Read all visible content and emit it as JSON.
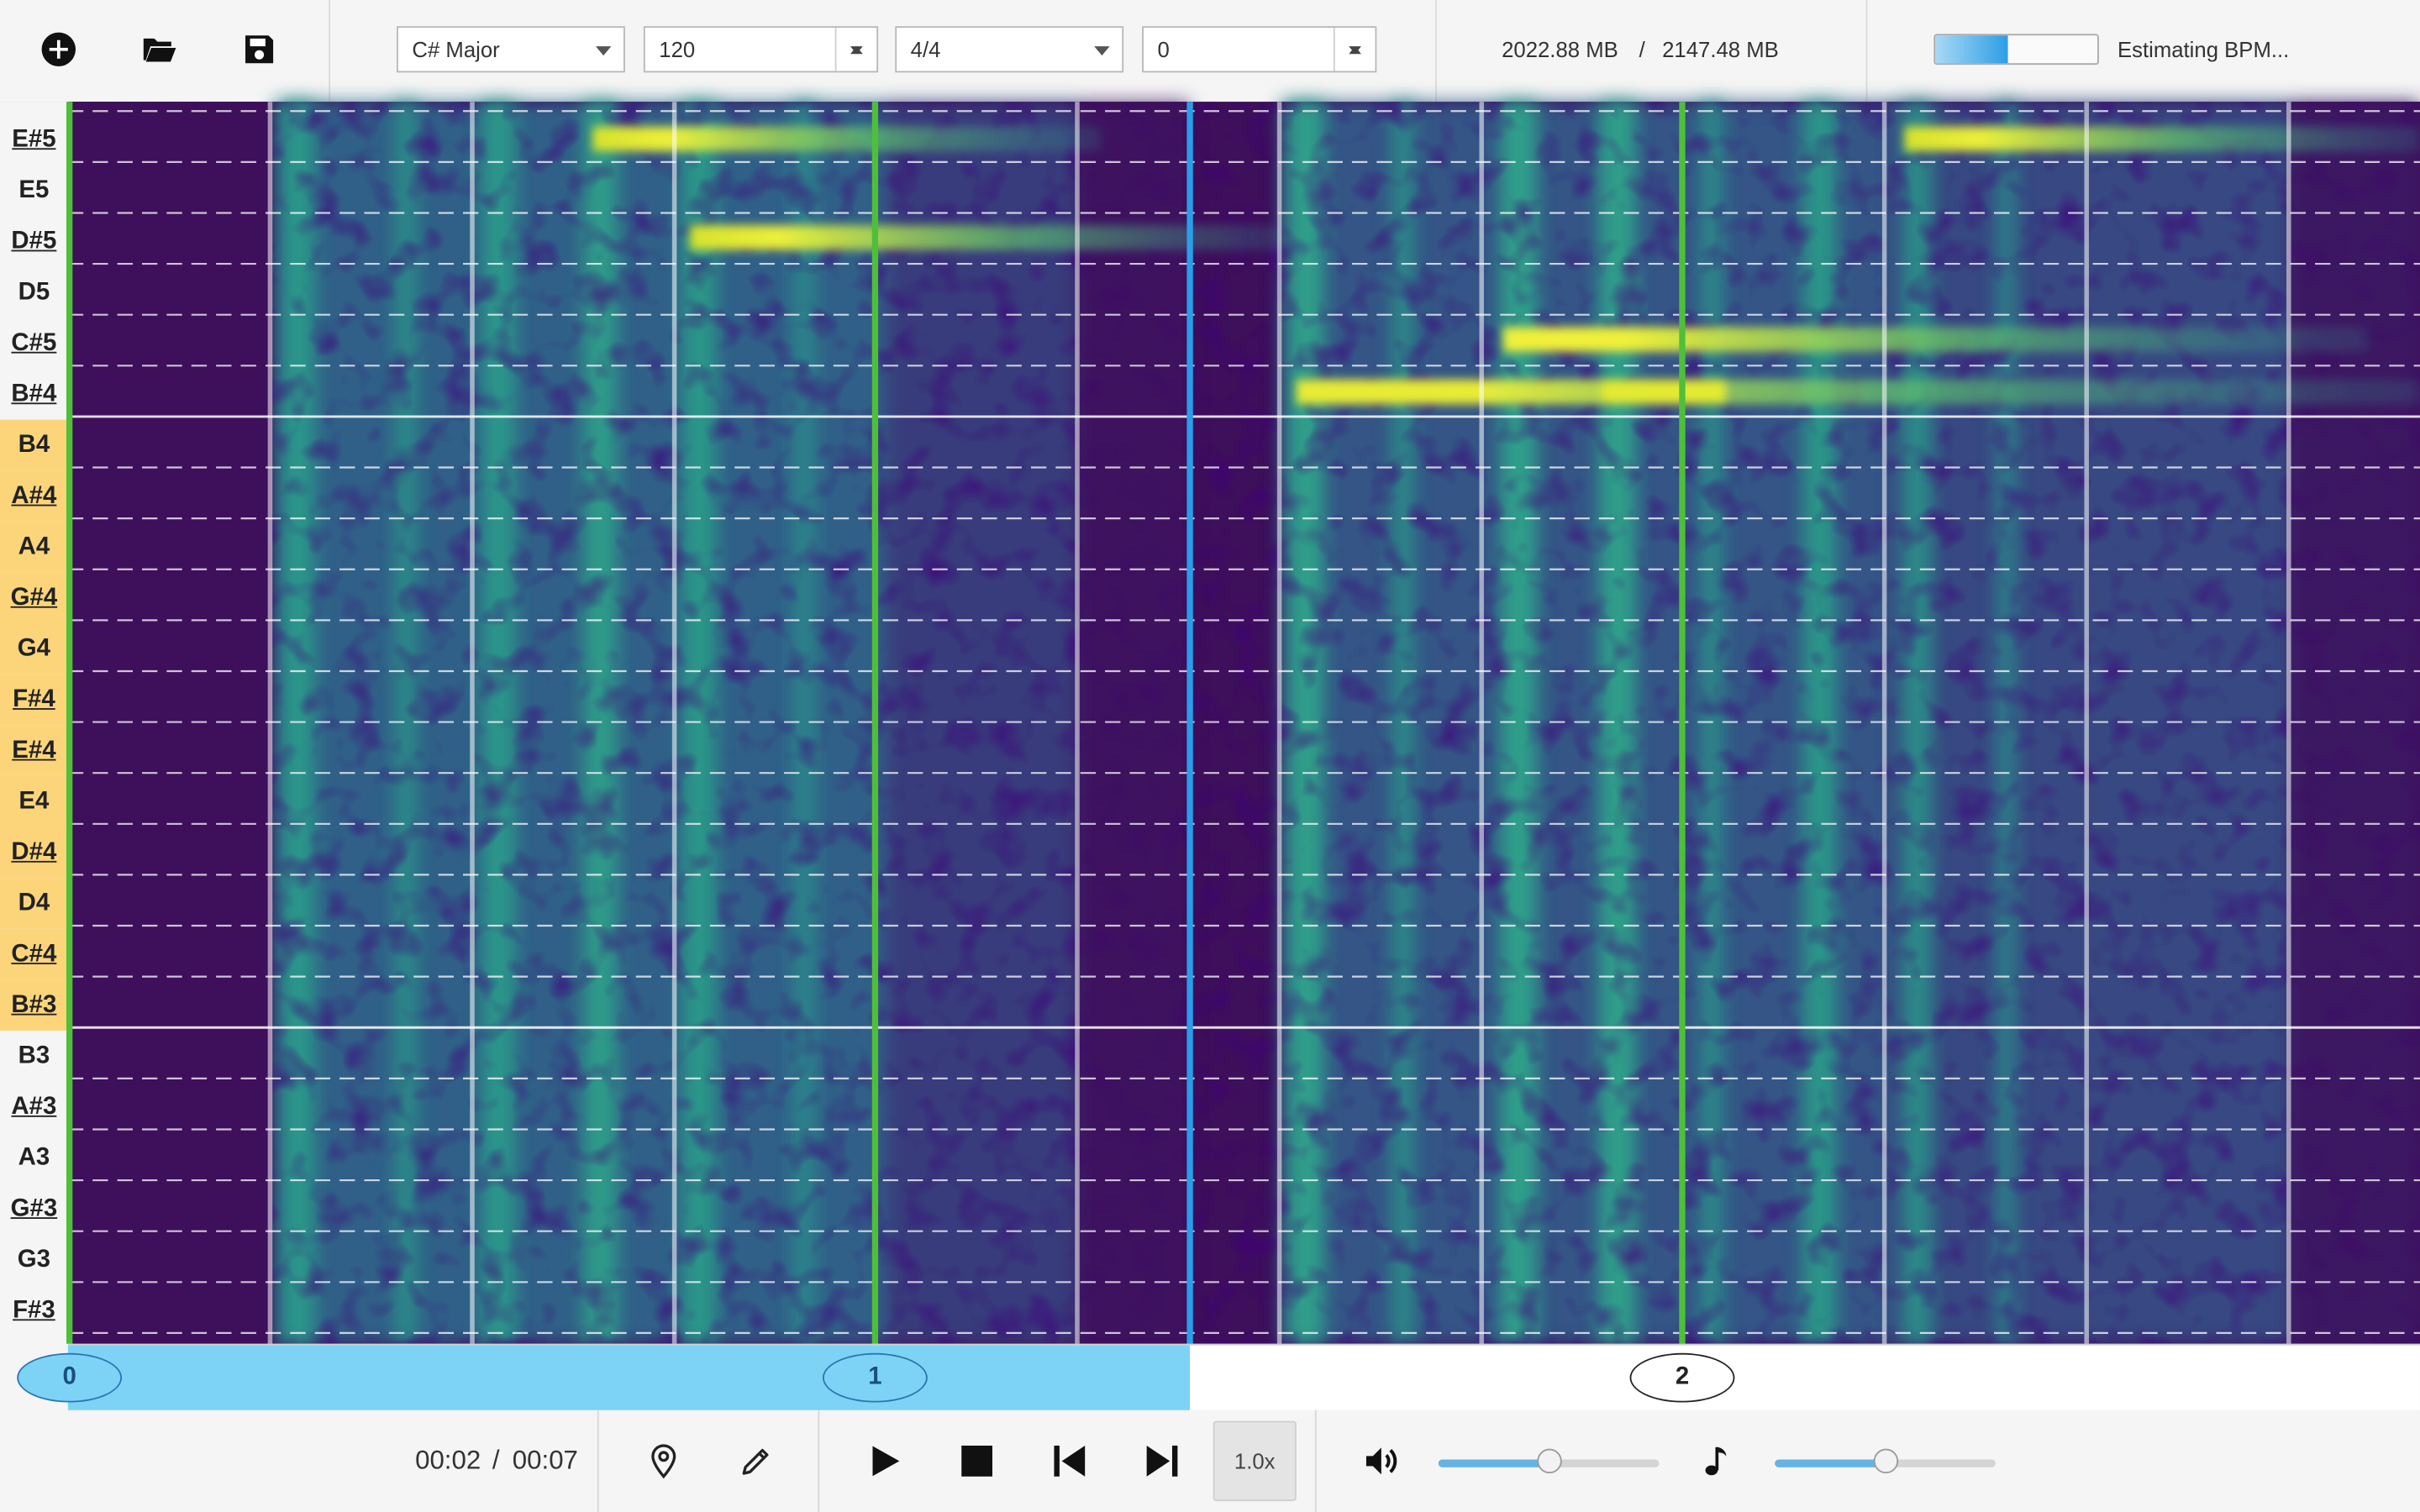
{
  "toolbar": {
    "key_value": "C# Major",
    "bpm_value": "120",
    "time_signature_value": "4/4",
    "offset_value": "0",
    "memory_used": "2022.88 MB",
    "memory_separator": "/",
    "memory_total": "2147.48 MB",
    "bpm_progress_fraction": 0.45,
    "status_text": "Estimating BPM...",
    "icons": [
      "add-circle-icon",
      "folder-open-icon",
      "save-icon"
    ]
  },
  "notes": [
    "E#5",
    "E5",
    "D#5",
    "D5",
    "C#5",
    "B#4",
    "B4",
    "A#4",
    "A4",
    "G#4",
    "G4",
    "F#4",
    "E#4",
    "E4",
    "D#4",
    "D4",
    "C#4",
    "B#3",
    "B3",
    "A#3",
    "A3",
    "G#3",
    "G3",
    "F#3"
  ],
  "ruler": {
    "markers": [
      "0",
      "1",
      "2"
    ],
    "played_fraction": 0.477
  },
  "transport": {
    "current_time": "00:02",
    "separator": "/",
    "total_time": "00:07",
    "speed": "1.0x",
    "volume_level": 0.5,
    "note_volume_level": 0.5,
    "icons": [
      "map-pin-icon",
      "pencil-icon",
      "play-icon",
      "stop-icon",
      "skip-back-icon",
      "skip-forward-icon",
      "volume-icon",
      "music-note-icon"
    ]
  },
  "colors": {
    "spectrogram_low": "#3e0f5b",
    "spectrogram_mid": "#2b7e8c",
    "spectrogram_high": "#d9e52a",
    "playhead": "#2a9de8",
    "beat_line": "#4fbf3a",
    "key_highlight": "#fcd57a",
    "ruler_played": "#7dd3f5"
  }
}
